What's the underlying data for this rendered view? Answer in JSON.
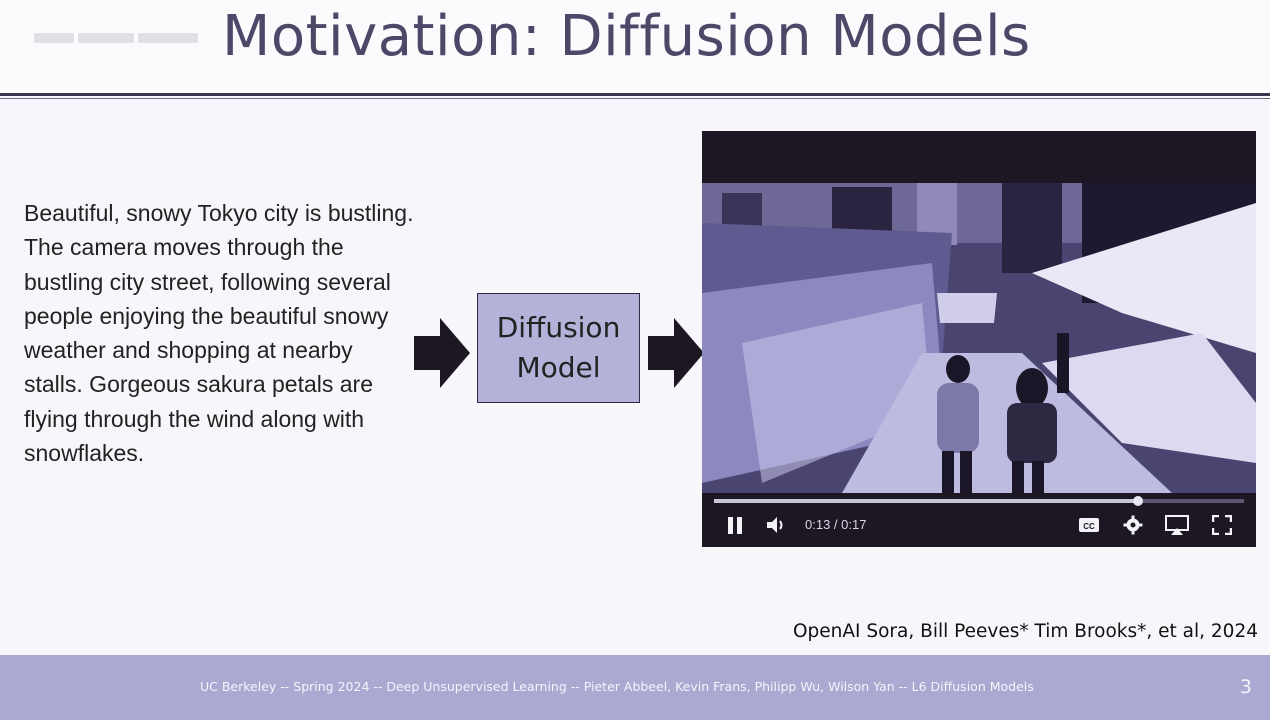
{
  "slide": {
    "title": "Motivation: Diffusion Models",
    "prompt_text": "Beautiful, snowy Tokyo city is bustling. The camera moves through the bustling city street, following several people enjoying the beautiful snowy weather and shopping at nearby stalls. Gorgeous sakura petals are flying through the wind along with snowflakes.",
    "model_box": {
      "line1": "Diffusion",
      "line2": "Model"
    },
    "citation": "OpenAI Sora, Bill Peeves* Tim Brooks*, et al, 2024",
    "footer": "UC Berkeley -- Spring 2024 -- Deep Unsupervised Learning -- Pieter Abbeel, Kevin Frans, Philipp Wu, Wilson Yan -- L6 Diffusion Models",
    "page_number": "3"
  },
  "video_player": {
    "time_display": "0:13 / 0:17",
    "progress": 0.8,
    "icons": [
      "pause-icon",
      "volume-icon",
      "closed-captions-icon",
      "settings-gear-icon",
      "airplay-icon",
      "fullscreen-icon"
    ]
  },
  "colors": {
    "title": "#4d4868",
    "box_fill": "#b3b2d9",
    "footer_bg": "#aaa9d2",
    "arrow": "#1d1623",
    "player_bg": "#1d1623"
  }
}
